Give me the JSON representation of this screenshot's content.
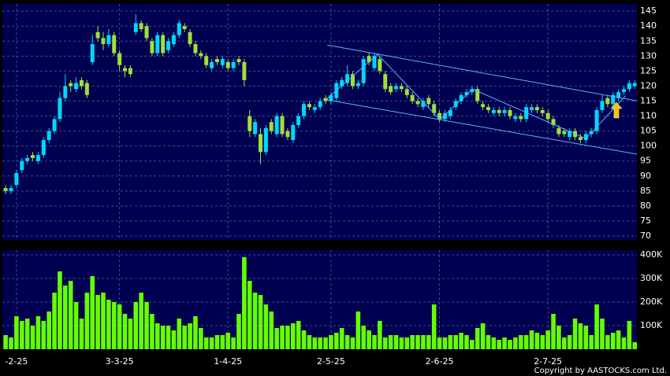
{
  "chart_data": [
    {
      "type": "candlestick",
      "xlim": [
        -0.6,
        116.4
      ],
      "ylim": [
        68.7,
        147.4
      ],
      "yticks": [
        70,
        75,
        80,
        85,
        90,
        95,
        100,
        105,
        110,
        115,
        120,
        125,
        130,
        135,
        140,
        145
      ],
      "grid": true,
      "up_color": "#00d8ff",
      "down_color": "#9fe03a",
      "open": [
        86,
        85,
        87,
        92,
        95,
        97,
        95,
        97,
        102,
        105,
        109,
        116,
        121,
        119,
        122,
        121,
        128,
        138,
        136,
        134,
        137,
        131,
        126,
        126,
        138,
        141,
        140,
        135,
        131,
        137,
        132,
        134,
        137,
        140,
        138,
        134,
        131,
        130,
        126,
        129,
        127,
        128,
        126,
        129,
        128,
        110,
        104,
        104,
        98,
        108,
        104,
        110,
        105,
        102,
        107,
        110,
        114,
        112,
        113,
        116,
        115,
        116,
        120,
        121,
        124,
        120,
        121,
        130,
        126,
        129,
        124,
        120,
        119,
        120,
        119,
        117,
        115,
        113,
        116,
        114,
        111,
        109,
        110,
        113,
        115,
        117,
        118,
        119,
        114,
        113,
        111,
        112,
        111,
        112,
        109,
        110,
        109,
        112,
        113,
        112,
        111,
        109,
        106,
        105,
        103,
        105,
        103,
        102,
        104,
        105,
        112,
        116,
        114,
        116,
        118,
        119,
        120
      ],
      "high": [
        87,
        87,
        92,
        96,
        97,
        98,
        98,
        103,
        106,
        110,
        118,
        124,
        122,
        123,
        123,
        122,
        137,
        140,
        138,
        139,
        138,
        132,
        127,
        127,
        144,
        142,
        141,
        136,
        138,
        138,
        136,
        138,
        142,
        141,
        139,
        135,
        132,
        131,
        129,
        130,
        130,
        129,
        129,
        130,
        129,
        112,
        109,
        106,
        107,
        109,
        111,
        111,
        106,
        108,
        111,
        115,
        115,
        114,
        116,
        117,
        118,
        122,
        123,
        127,
        125,
        122,
        130,
        131,
        131,
        130,
        125,
        121,
        121,
        121,
        120,
        118,
        116,
        116,
        117,
        115,
        112,
        112,
        113,
        116,
        118,
        119,
        120,
        120,
        115,
        114,
        113,
        113,
        113,
        113,
        111,
        111,
        114,
        114,
        114,
        113,
        112,
        110,
        107,
        106,
        106,
        106,
        104,
        105,
        106,
        113,
        117,
        117,
        118,
        119,
        120,
        122,
        122
      ],
      "low": [
        84,
        84,
        86,
        91,
        94,
        95,
        94,
        96,
        101,
        104,
        108,
        115,
        118,
        118,
        119,
        116,
        127,
        135,
        132,
        133,
        130,
        125,
        123,
        123,
        137,
        138,
        135,
        130,
        130,
        130,
        131,
        133,
        136,
        138,
        133,
        130,
        129,
        126,
        125,
        127,
        126,
        125,
        125,
        127,
        120,
        103,
        103,
        94,
        97,
        104,
        103,
        103,
        102,
        101,
        106,
        109,
        112,
        111,
        112,
        114,
        114,
        115,
        119,
        120,
        119,
        119,
        120,
        127,
        125,
        124,
        118,
        117,
        118,
        118,
        116,
        114,
        113,
        112,
        113,
        110,
        108,
        108,
        109,
        112,
        114,
        116,
        117,
        114,
        112,
        111,
        110,
        110,
        110,
        109,
        108,
        108,
        108,
        111,
        111,
        110,
        108,
        106,
        103,
        103,
        102,
        102,
        101,
        101,
        103,
        104,
        111,
        113,
        113,
        115,
        117,
        118,
        119
      ],
      "close": [
        85,
        86,
        91,
        95,
        96,
        96,
        97,
        102,
        105,
        109,
        116,
        120,
        120,
        121,
        120,
        117,
        134,
        136,
        134,
        137,
        131,
        127,
        125,
        124,
        141,
        139,
        136,
        131,
        137,
        131,
        135,
        137,
        141,
        139,
        134,
        131,
        130,
        127,
        128,
        128,
        129,
        126,
        128,
        128,
        122,
        105,
        108,
        98,
        106,
        105,
        110,
        104,
        103,
        107,
        110,
        114,
        113,
        113,
        115,
        115,
        117,
        121,
        122,
        124,
        120,
        121,
        129,
        128,
        130,
        125,
        119,
        118,
        120,
        119,
        117,
        115,
        114,
        115,
        114,
        111,
        109,
        111,
        112,
        115,
        117,
        118,
        119,
        115,
        113,
        112,
        112,
        111,
        112,
        110,
        110,
        109,
        113,
        113,
        112,
        111,
        109,
        107,
        104,
        104,
        105,
        103,
        102,
        104,
        105,
        112,
        115,
        114,
        117,
        118,
        119,
        121,
        121
      ],
      "trendline_color": "#5ab4ff",
      "trendlines": [
        {
          "x": [
            59.3,
            116.4
          ],
          "y": [
            133.7,
            115.1
          ]
        },
        {
          "x": [
            59.3,
            116.4
          ],
          "y": [
            115.4,
            97.3
          ]
        },
        {
          "x": [
            59.3,
            68.6,
            80.1,
            86.1,
            107,
            114.3
          ],
          "y": [
            115.9,
            130.6,
            108.8,
            119.0,
            102.5,
            116.7
          ]
        }
      ]
    },
    {
      "type": "bar",
      "xlim": [
        -0.6,
        116.4
      ],
      "ylim": [
        0,
        420000
      ],
      "yticks": [
        {
          "value": 100000,
          "label": "100K"
        },
        {
          "value": 200000,
          "label": "200K"
        },
        {
          "value": 300000,
          "label": "300K"
        },
        {
          "value": 400000,
          "label": "400K"
        }
      ],
      "xticks": [
        {
          "value": 2,
          "label": "-2-25"
        },
        {
          "value": 21,
          "label": "3-3-25"
        },
        {
          "value": 41,
          "label": "1-4-25"
        },
        {
          "value": 60,
          "label": "2-5-25"
        },
        {
          "value": 80,
          "label": "2-6-25"
        },
        {
          "value": 100,
          "label": "2-7-25"
        }
      ],
      "grid": true,
      "color": "#66ff00",
      "values": [
        60000,
        50000,
        140000,
        120000,
        130000,
        100000,
        140000,
        120000,
        160000,
        240000,
        330000,
        270000,
        290000,
        200000,
        130000,
        240000,
        310000,
        230000,
        240000,
        210000,
        200000,
        190000,
        150000,
        130000,
        200000,
        240000,
        200000,
        150000,
        110000,
        100000,
        100000,
        80000,
        130000,
        100000,
        110000,
        140000,
        90000,
        50000,
        50000,
        60000,
        60000,
        70000,
        50000,
        150000,
        390000,
        290000,
        240000,
        230000,
        190000,
        160000,
        90000,
        100000,
        100000,
        110000,
        120000,
        80000,
        60000,
        50000,
        50000,
        50000,
        60000,
        70000,
        90000,
        60000,
        50000,
        160000,
        100000,
        80000,
        60000,
        120000,
        50000,
        60000,
        60000,
        50000,
        50000,
        60000,
        60000,
        60000,
        60000,
        190000,
        50000,
        50000,
        60000,
        60000,
        70000,
        60000,
        40000,
        90000,
        110000,
        60000,
        50000,
        40000,
        50000,
        40000,
        50000,
        60000,
        60000,
        80000,
        70000,
        60000,
        80000,
        150000,
        100000,
        50000,
        60000,
        130000,
        110000,
        100000,
        60000,
        190000,
        130000,
        60000,
        70000,
        80000,
        50000,
        120000,
        30000
      ]
    }
  ],
  "copyright": "Copyright by AASTOCKS.com Ltd."
}
